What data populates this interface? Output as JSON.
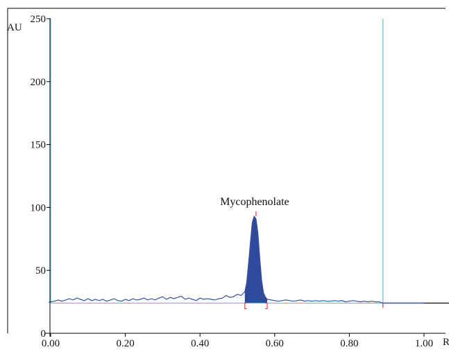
{
  "chart_data": {
    "type": "line",
    "title": "",
    "ylabel": "AU",
    "xlabel": "R",
    "xlim": [
      -0.01,
      1.07
    ],
    "ylim": [
      0,
      250
    ],
    "x_ticks": [
      0.0,
      0.2,
      0.4,
      0.6,
      0.8,
      1.0
    ],
    "x_tick_labels": [
      "0.00",
      "0.20",
      "0.40",
      "0.60",
      "0.80",
      "1.00"
    ],
    "y_ticks": [
      0,
      50,
      100,
      150,
      200,
      250
    ],
    "y_tick_labels": [
      "0",
      "50",
      "100",
      "150",
      "200",
      "250"
    ],
    "grid": false,
    "baseline": 24,
    "front_lines_x": [
      0.0,
      0.89
    ],
    "annotation": {
      "text": "Mycophenolate",
      "x": 0.55,
      "y": 102
    },
    "peak": {
      "name": "Mycophenolate",
      "x_start": 0.52,
      "x_end": 0.58,
      "apex_x": 0.55,
      "apex_y": 93
    },
    "series": [
      {
        "x": [
          -0.005,
          0.0,
          0.01,
          0.02,
          0.03,
          0.04,
          0.05,
          0.06,
          0.07,
          0.08,
          0.09,
          0.1,
          0.11,
          0.12,
          0.13,
          0.14,
          0.15,
          0.16,
          0.17,
          0.18,
          0.19,
          0.2,
          0.21,
          0.22,
          0.23,
          0.24,
          0.25,
          0.26,
          0.27,
          0.28,
          0.29,
          0.3,
          0.31,
          0.32,
          0.33,
          0.34,
          0.35,
          0.36,
          0.37,
          0.38,
          0.39,
          0.4,
          0.41,
          0.42,
          0.43,
          0.44,
          0.45,
          0.46,
          0.47,
          0.48,
          0.49,
          0.5,
          0.51,
          0.52,
          0.525,
          0.53,
          0.535,
          0.54,
          0.545,
          0.55,
          0.555,
          0.56,
          0.565,
          0.57,
          0.575,
          0.58,
          0.59,
          0.6,
          0.61,
          0.62,
          0.63,
          0.64,
          0.65,
          0.66,
          0.67,
          0.68,
          0.69,
          0.7,
          0.71,
          0.72,
          0.73,
          0.74,
          0.75,
          0.76,
          0.77,
          0.78,
          0.79,
          0.8,
          0.81,
          0.82,
          0.83,
          0.84,
          0.85,
          0.86,
          0.87,
          0.88,
          0.89
        ],
        "y": [
          24.5,
          25,
          25.5,
          26.5,
          25.5,
          26.5,
          27.5,
          26.5,
          28,
          27,
          26,
          27.5,
          26,
          27,
          26,
          27,
          25.5,
          26.5,
          27.5,
          26,
          25.5,
          27,
          26,
          27.5,
          26.5,
          27,
          28,
          26.5,
          27.5,
          26.5,
          28,
          29,
          27,
          28.5,
          27.5,
          28.5,
          29.5,
          27,
          28,
          27,
          26,
          28,
          27,
          27.5,
          27,
          26.5,
          27.5,
          28,
          30,
          28.5,
          29,
          31,
          30,
          33,
          40,
          55,
          72,
          88,
          93,
          91,
          80,
          60,
          42,
          32,
          29,
          27,
          26.5,
          26,
          25.5,
          26,
          26.5,
          26,
          25.5,
          26,
          26.5,
          25.5,
          26,
          25.5,
          26,
          25.5,
          26,
          25.5,
          25.5,
          26,
          25.5,
          26,
          25,
          25.5,
          26,
          25.5,
          25,
          25.5,
          25,
          25.5,
          25,
          25,
          24
        ]
      },
      {
        "x": [
          0.89,
          0.93,
          0.98,
          1.0,
          1.05,
          1.07
        ],
        "y": [
          24,
          24,
          24,
          24,
          24,
          24
        ]
      }
    ]
  }
}
